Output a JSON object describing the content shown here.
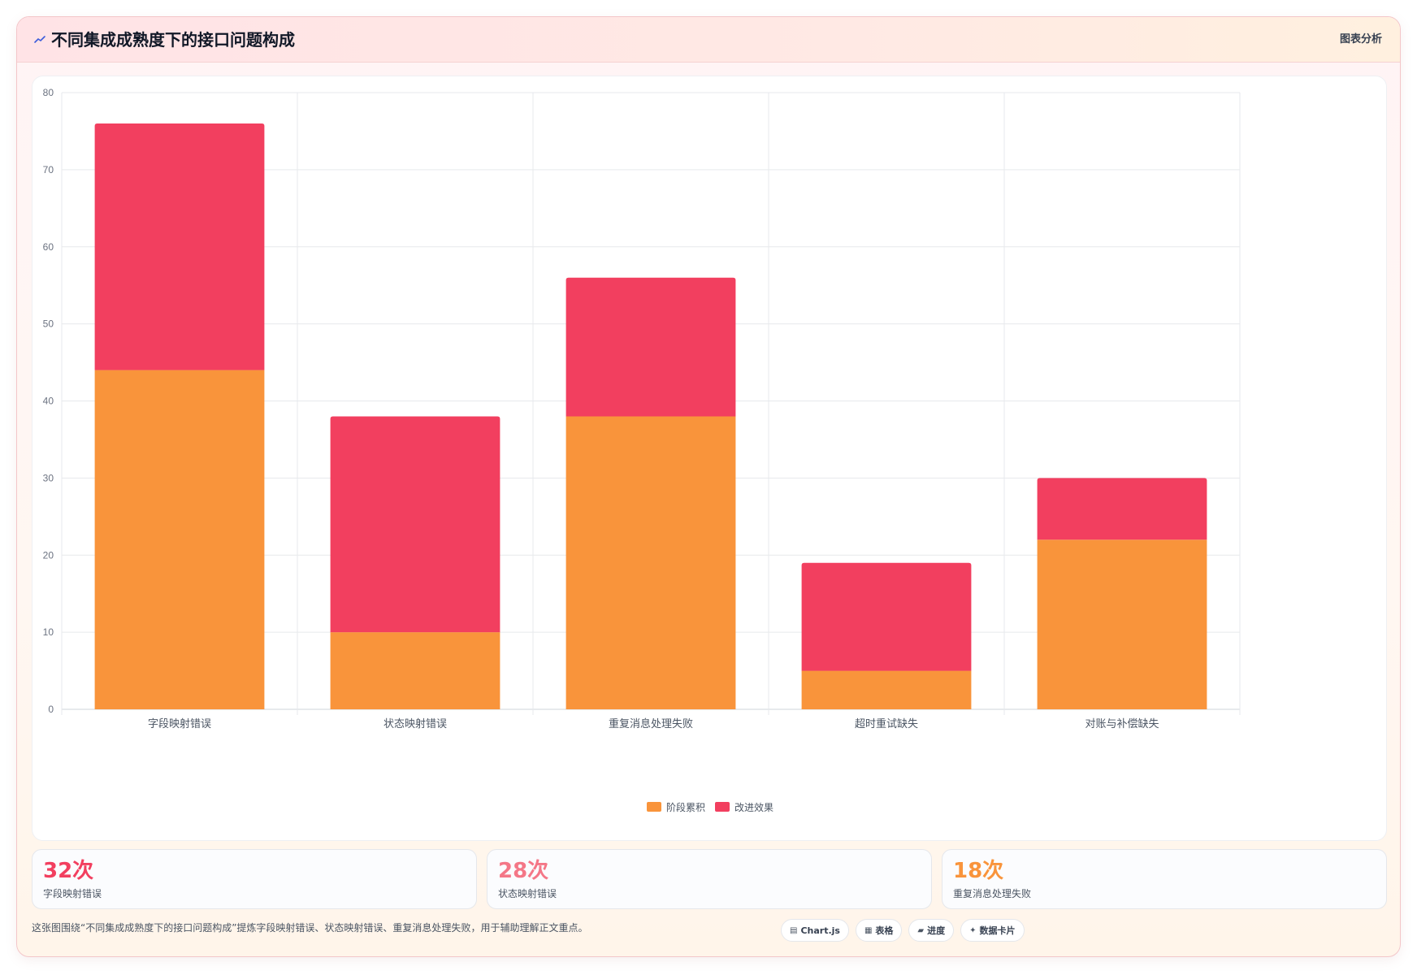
{
  "header": {
    "icon": "trend-icon",
    "title": "不同集成成熟度下的接口问题构成",
    "analysis_label": "图表分析"
  },
  "chart_data": {
    "type": "bar",
    "stacked": true,
    "categories": [
      "字段映射错误",
      "状态映射错误",
      "重复消息处理失败",
      "超时重试缺失",
      "对账与补偿缺失"
    ],
    "series": [
      {
        "name": "阶段累积",
        "color": "#f9943b",
        "values": [
          44,
          10,
          38,
          5,
          22
        ]
      },
      {
        "name": "改进效果",
        "color": "#f23f5f",
        "values": [
          32,
          28,
          18,
          14,
          8
        ]
      }
    ],
    "ylim": [
      0,
      80
    ],
    "yticks": [
      0,
      10,
      20,
      30,
      40,
      50,
      60,
      70,
      80
    ],
    "grid": true,
    "legend_position": "bottom"
  },
  "stats": [
    {
      "value": "32次",
      "label": "字段映射错误",
      "color": "#f23f5f"
    },
    {
      "value": "28次",
      "label": "状态映射错误",
      "color": "#f47787"
    },
    {
      "value": "18次",
      "label": "重复消息处理失败",
      "color": "#f9943b"
    }
  ],
  "footer": {
    "text": "这张图围绕“不同集成成熟度下的接口问题构成”提炼字段映射错误、状态映射错误、重复消息处理失败，用于辅助理解正文重点。"
  },
  "chips": [
    {
      "icon": "chart-icon",
      "glyph": "▤",
      "label": "Chart.js"
    },
    {
      "icon": "table-icon",
      "glyph": "▦",
      "label": "表格"
    },
    {
      "icon": "progress-icon",
      "glyph": "▰",
      "label": "进度"
    },
    {
      "icon": "sparkle-icon",
      "glyph": "✦",
      "label": "数据卡片"
    }
  ]
}
